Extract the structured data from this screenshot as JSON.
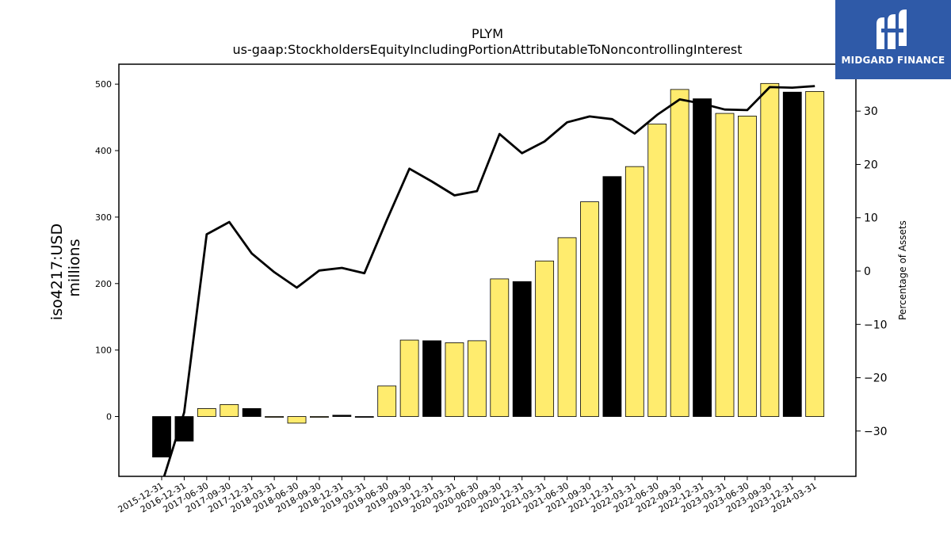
{
  "chart_data": {
    "type": "bar",
    "title": "PLYM",
    "subtitle": "us-gaap:StockholdersEquityIncludingPortionAttributableToNoncontrollingInterest",
    "ylabel": "iso4217:USD",
    "ylabel2": "millions",
    "y2label": "Percentage of Assets",
    "ylim": [
      -90,
      530
    ],
    "y2lim": [
      -38.5,
      38.8
    ],
    "yticks": [
      0,
      100,
      200,
      300,
      400,
      500
    ],
    "y2ticks": [
      -30,
      -20,
      -10,
      0,
      10,
      20,
      30
    ],
    "categories": [
      "2015-12-31",
      "2016-12-31",
      "2017-06-30",
      "2017-09-30",
      "2017-12-31",
      "2018-03-31",
      "2018-06-30",
      "2018-09-30",
      "2018-12-31",
      "2019-03-31",
      "2019-06-30",
      "2019-09-30",
      "2019-12-31",
      "2020-03-31",
      "2020-06-30",
      "2020-09-30",
      "2020-12-31",
      "2021-03-31",
      "2021-06-30",
      "2021-09-30",
      "2021-12-31",
      "2022-03-31",
      "2022-06-30",
      "2022-09-30",
      "2022-12-31",
      "2023-03-31",
      "2023-06-30",
      "2023-09-30",
      "2023-12-31",
      "2024-03-31"
    ],
    "series": [
      {
        "values": [
          -61,
          -37,
          12,
          18,
          12,
          -1,
          -10,
          -1,
          2,
          -1,
          46,
          115,
          114,
          111,
          114,
          207,
          203,
          234,
          269,
          323,
          361,
          376,
          440,
          492,
          478,
          456,
          452,
          501,
          488,
          489
        ],
        "bar_colors": [
          "#000000",
          "#000000",
          "#ffec6e",
          "#ffec6e",
          "#000000",
          "#ffec6e",
          "#ffec6e",
          "#ffec6e",
          "#000000",
          "#000000",
          "#ffec6e",
          "#ffec6e",
          "#000000",
          "#ffec6e",
          "#ffec6e",
          "#ffec6e",
          "#000000",
          "#ffec6e",
          "#ffec6e",
          "#ffec6e",
          "#000000",
          "#ffec6e",
          "#ffec6e",
          "#ffec6e",
          "#000000",
          "#ffec6e",
          "#ffec6e",
          "#ffec6e",
          "#000000",
          "#ffec6e"
        ]
      },
      {
        "axis": "right",
        "line_color": "#000000",
        "values": [
          -40,
          -26.5,
          6.9,
          9.2,
          3.3,
          -0.2,
          -3.1,
          0.1,
          0.6,
          -0.4,
          9.6,
          19.2,
          16.8,
          14.2,
          15.0,
          25.7,
          22.1,
          24.3,
          27.9,
          29.0,
          28.5,
          25.8,
          29.3,
          32.2,
          31.4,
          30.3,
          30.2,
          34.5,
          34.4,
          34.7
        ]
      }
    ],
    "grid": false
  },
  "logo": {
    "text": "MIDGARD FINANCE",
    "background": "#2f5aa8"
  }
}
